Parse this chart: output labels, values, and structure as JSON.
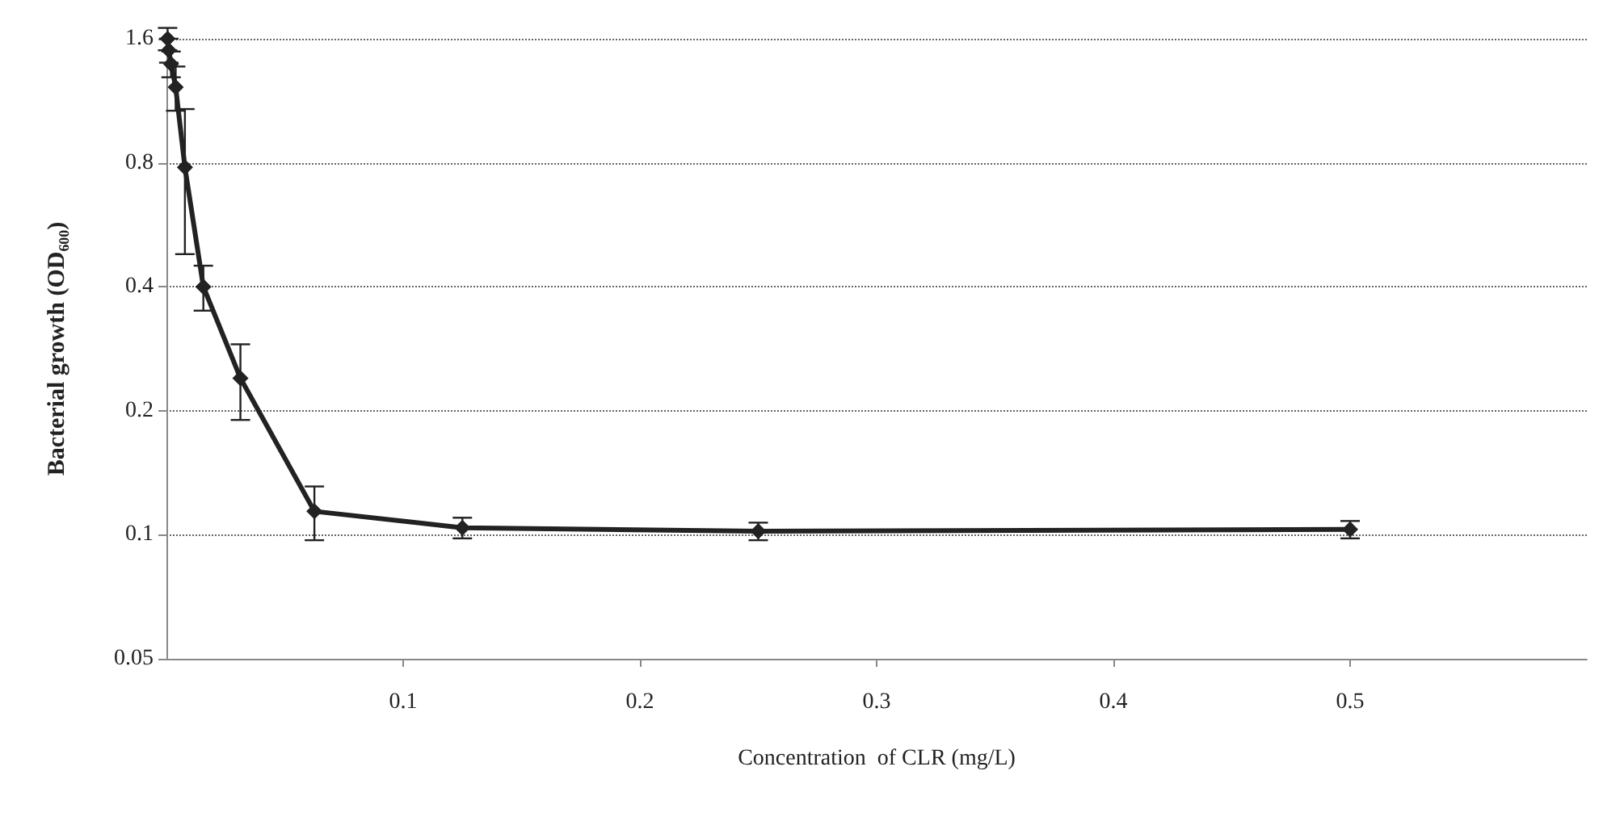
{
  "chart_data": {
    "type": "line",
    "xlabel": "Concentration  of CLR (mg/L)",
    "ylabel": "Bacterial growth (OD₆₀₀)",
    "x": [
      0.000488,
      0.00098,
      0.00195,
      0.0039,
      0.0078,
      0.0156,
      0.03125,
      0.0625,
      0.125,
      0.25,
      0.5
    ],
    "series": [
      {
        "color": "#222222",
        "values": [
          1.6,
          1.5,
          1.39,
          1.22,
          0.78,
          0.4,
          0.24,
          0.114,
          0.104,
          0.102,
          0.103
        ],
        "errors": [
          0.1,
          0.1,
          0.1,
          0.15,
          0.3,
          0.05,
          0.05,
          0.017,
          0.006,
          0.005,
          0.005
        ]
      }
    ],
    "xlim": [
      0,
      0.6
    ],
    "xticks": [
      0.1,
      0.2,
      0.3,
      0.4,
      0.5
    ],
    "ylim": [
      0.05,
      1.6
    ],
    "yticks": [
      0.05,
      0.1,
      0.2,
      0.4,
      0.8,
      1.6
    ],
    "log": "y",
    "grid": "y",
    "marker": "diamond",
    "line_style": "solid"
  }
}
